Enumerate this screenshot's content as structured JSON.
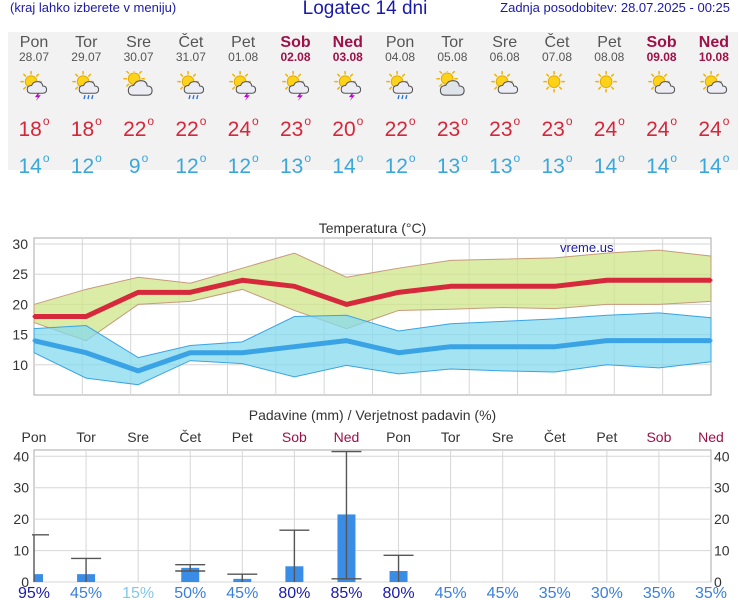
{
  "header": {
    "menu_hint": "(kraj lahko izberete v meniju)",
    "title": "Logatec 14 dni",
    "updated": "Zadnja posodobitev: 28.07.2025 - 00:25"
  },
  "forecast": [
    {
      "day": "Pon",
      "date": "28.07",
      "icon": "sun-thunder-icon",
      "tmax": "18",
      "tmin": "14",
      "weekend": false
    },
    {
      "day": "Tor",
      "date": "29.07",
      "icon": "sun-rain-icon",
      "tmax": "18",
      "tmin": "12",
      "weekend": false
    },
    {
      "day": "Sre",
      "date": "30.07",
      "icon": "partly-cloudy-icon",
      "tmax": "22",
      "tmin": "9",
      "weekend": false
    },
    {
      "day": "Čet",
      "date": "31.07",
      "icon": "sun-rain-icon",
      "tmax": "22",
      "tmin": "12",
      "weekend": false
    },
    {
      "day": "Pet",
      "date": "01.08",
      "icon": "sun-thunder-icon",
      "tmax": "24",
      "tmin": "12",
      "weekend": false
    },
    {
      "day": "Sob",
      "date": "02.08",
      "icon": "sun-thunder-icon",
      "tmax": "23",
      "tmin": "13",
      "weekend": true
    },
    {
      "day": "Ned",
      "date": "03.08",
      "icon": "sun-thunder-icon",
      "tmax": "20",
      "tmin": "14",
      "weekend": true
    },
    {
      "day": "Pon",
      "date": "04.08",
      "icon": "sun-rain-icon",
      "tmax": "22",
      "tmin": "12",
      "weekend": false
    },
    {
      "day": "Tor",
      "date": "05.08",
      "icon": "cloudy-icon",
      "tmax": "23",
      "tmin": "13",
      "weekend": false
    },
    {
      "day": "Sre",
      "date": "06.08",
      "icon": "sun-cloud-icon",
      "tmax": "23",
      "tmin": "13",
      "weekend": false
    },
    {
      "day": "Čet",
      "date": "07.08",
      "icon": "sun-icon",
      "tmax": "23",
      "tmin": "13",
      "weekend": false
    },
    {
      "day": "Pet",
      "date": "08.08",
      "icon": "sun-icon",
      "tmax": "24",
      "tmin": "14",
      "weekend": false
    },
    {
      "day": "Sob",
      "date": "09.08",
      "icon": "sun-cloud-icon",
      "tmax": "24",
      "tmin": "14",
      "weekend": true
    },
    {
      "day": "Ned",
      "date": "10.08",
      "icon": "sun-cloud-icon",
      "tmax": "24",
      "tmin": "14",
      "weekend": true
    }
  ],
  "chart_data": [
    {
      "type": "line",
      "title": "Temperatura (°C)",
      "watermark": "vreme.us",
      "ylim": [
        5,
        31
      ],
      "yticks": [
        10,
        15,
        20,
        25,
        30
      ],
      "categories": [
        "28.07",
        "29.07",
        "30.07",
        "31.07",
        "01.08",
        "02.08",
        "03.08",
        "04.08",
        "05.08",
        "06.08",
        "07.08",
        "08.08",
        "09.08",
        "10.08"
      ],
      "series": [
        {
          "name": "max",
          "color": "#d6293b",
          "values": [
            18,
            18,
            22,
            22,
            24,
            23,
            20,
            22,
            23,
            23,
            23,
            24,
            24,
            24
          ]
        },
        {
          "name": "max_high",
          "values": [
            20,
            22.5,
            24.5,
            23.5,
            26,
            28.5,
            24.5,
            26,
            27.3,
            27.5,
            27.7,
            28.5,
            29,
            28
          ]
        },
        {
          "name": "max_low",
          "values": [
            17,
            14,
            20,
            20.5,
            22.5,
            19,
            16,
            19,
            19.2,
            19.5,
            19.3,
            20,
            20,
            20.5
          ]
        },
        {
          "name": "min",
          "color": "#3aa3e6",
          "values": [
            14,
            12,
            9,
            12,
            12,
            13,
            14,
            12,
            13,
            13,
            13,
            14,
            14,
            14
          ]
        },
        {
          "name": "min_high",
          "values": [
            16,
            16.5,
            11.2,
            13.2,
            13.8,
            18,
            18.2,
            15.6,
            16.8,
            17.2,
            17.6,
            18.2,
            18.6,
            17.8
          ]
        },
        {
          "name": "min_low",
          "values": [
            12,
            7.8,
            6.7,
            10.7,
            10.2,
            8,
            9.9,
            8.5,
            9.3,
            9,
            8.8,
            10,
            9.5,
            10.5
          ]
        }
      ]
    },
    {
      "type": "bar",
      "title": "Padavine (mm) / Verjetnost padavin (%)",
      "ylim": [
        0,
        42
      ],
      "yticks": [
        0,
        10,
        20,
        30,
        40
      ],
      "day_labels": [
        "Pon",
        "Tor",
        "Sre",
        "Čet",
        "Pet",
        "Sob",
        "Ned",
        "Pon",
        "Tor",
        "Sre",
        "Čet",
        "Pet",
        "Sob",
        "Ned"
      ],
      "values": [
        2.5,
        2.5,
        0,
        4.5,
        1,
        5,
        21.5,
        3.5,
        0,
        0,
        0,
        0,
        0,
        0
      ],
      "error_bars": [
        [
          0,
          15
        ],
        [
          0,
          7.5
        ],
        null,
        [
          3.5,
          5.5
        ],
        [
          0,
          2.5
        ],
        [
          0,
          16.5
        ],
        [
          1,
          41.5
        ],
        [
          0,
          8.5
        ],
        null,
        null,
        null,
        null,
        null,
        null
      ],
      "probability": [
        "95%",
        "45%",
        "15%",
        "50%",
        "45%",
        "80%",
        "85%",
        "80%",
        "45%",
        "45%",
        "35%",
        "30%",
        "35%",
        "35%"
      ]
    }
  ]
}
